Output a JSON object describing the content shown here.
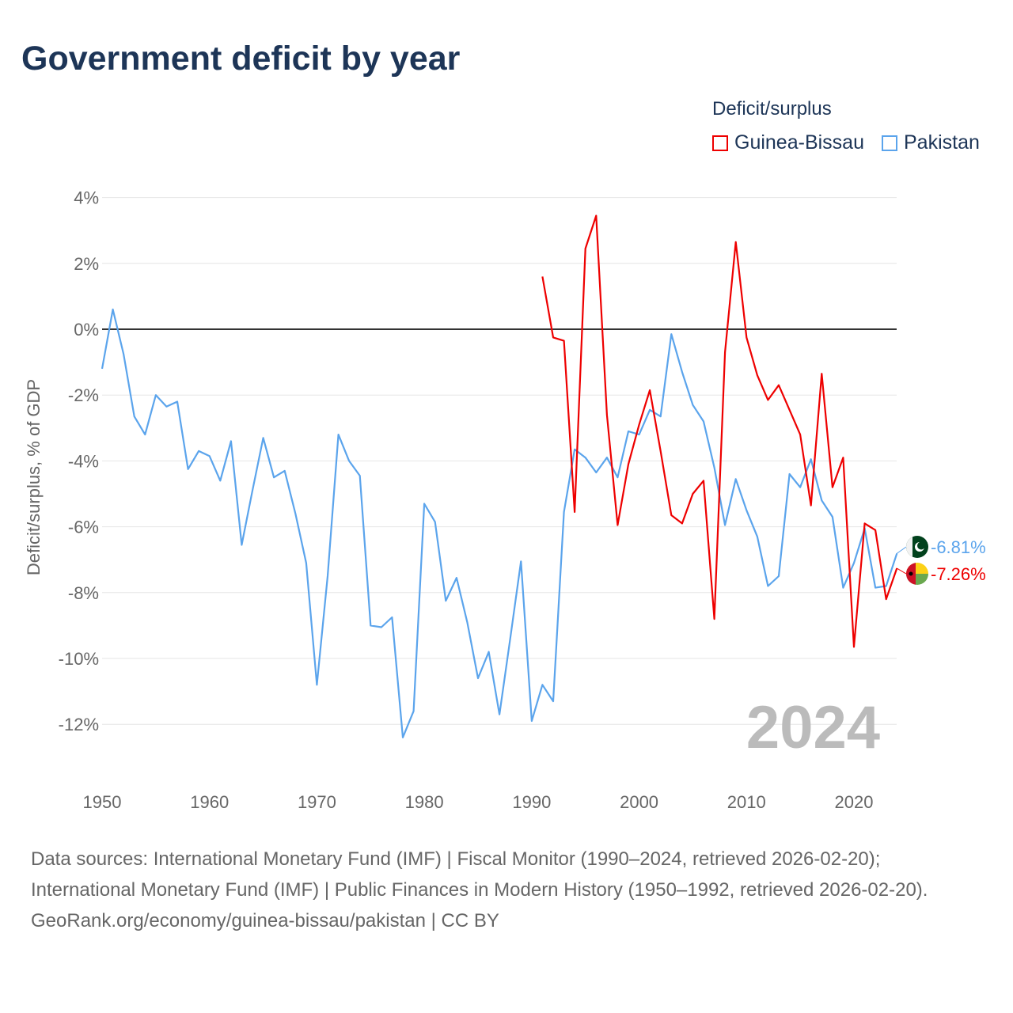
{
  "chart_data": {
    "type": "line",
    "title": "Government deficit by year",
    "ylabel": "Deficit/surplus, % of GDP",
    "xlabel": "",
    "ylim": [
      -13,
      4.5
    ],
    "xlim": [
      1950,
      2024
    ],
    "yticks": [
      4,
      2,
      0,
      -2,
      -4,
      -6,
      -8,
      -10,
      -12
    ],
    "ytick_labels": [
      "4%",
      "2%",
      "0%",
      "-2%",
      "-4%",
      "-6%",
      "-8%",
      "-10%",
      "-12%"
    ],
    "xticks": [
      1950,
      1960,
      1970,
      1980,
      1990,
      2000,
      2010,
      2020
    ],
    "xtick_labels": [
      "1950",
      "1960",
      "1970",
      "1980",
      "1990",
      "2000",
      "2010",
      "2020"
    ],
    "grid": true,
    "legend_title": "Deficit/surplus",
    "legend_position": "top-right",
    "year_watermark": "2024",
    "series": [
      {
        "name": "Guinea-Bissau",
        "color": "#ee0000",
        "start_year": 1991,
        "end_label": "-7.26%",
        "values": [
          1.6,
          -0.25,
          -0.35,
          -5.55,
          2.45,
          3.45,
          -2.6,
          -5.95,
          -4.1,
          -2.9,
          -1.85,
          -3.7,
          -5.65,
          -5.9,
          -5.0,
          -4.6,
          -8.8,
          -0.7,
          2.65,
          -0.25,
          -1.4,
          -2.15,
          -1.7,
          -2.45,
          -3.2,
          -5.35,
          -1.35,
          -4.8,
          -3.9,
          -9.65,
          -5.9,
          -6.1,
          -8.2,
          -7.26
        ]
      },
      {
        "name": "Pakistan",
        "color": "#5ba4ec",
        "start_year": 1950,
        "end_label": "-6.81%",
        "values": [
          -1.2,
          0.6,
          -0.75,
          -2.65,
          -3.2,
          -2.0,
          -2.35,
          -2.2,
          -4.25,
          -3.7,
          -3.85,
          -4.6,
          -3.4,
          -6.55,
          -4.9,
          -3.3,
          -4.5,
          -4.3,
          -5.6,
          -7.1,
          -10.8,
          -7.5,
          -3.2,
          -4.0,
          -4.45,
          -9.0,
          -9.05,
          -8.75,
          -12.4,
          -11.6,
          -5.3,
          -5.85,
          -8.25,
          -7.55,
          -8.9,
          -10.6,
          -9.8,
          -11.7,
          -9.4,
          -7.05,
          -11.9,
          -10.8,
          -11.3,
          -5.55,
          -3.65,
          -3.9,
          -4.35,
          -3.9,
          -4.5,
          -3.1,
          -3.2,
          -2.45,
          -2.65,
          -0.15,
          -1.3,
          -2.3,
          -2.8,
          -4.2,
          -5.95,
          -4.55,
          -5.5,
          -6.3,
          -7.8,
          -7.5,
          -4.4,
          -4.8,
          -3.95,
          -5.2,
          -5.7,
          -7.85,
          -7.1,
          -6.05,
          -7.85,
          -7.8,
          -6.81
        ]
      }
    ]
  },
  "footer": {
    "sources": "Data sources: International Monetary Fund (IMF) | Fiscal Monitor (1990–2024, retrieved 2026-02-20); International Monetary Fund (IMF) | Public Finances in Modern History (1950–1992, retrieved 2026-02-20).",
    "link": "GeoRank.org/economy/guinea-bissau/pakistan | CC BY"
  }
}
